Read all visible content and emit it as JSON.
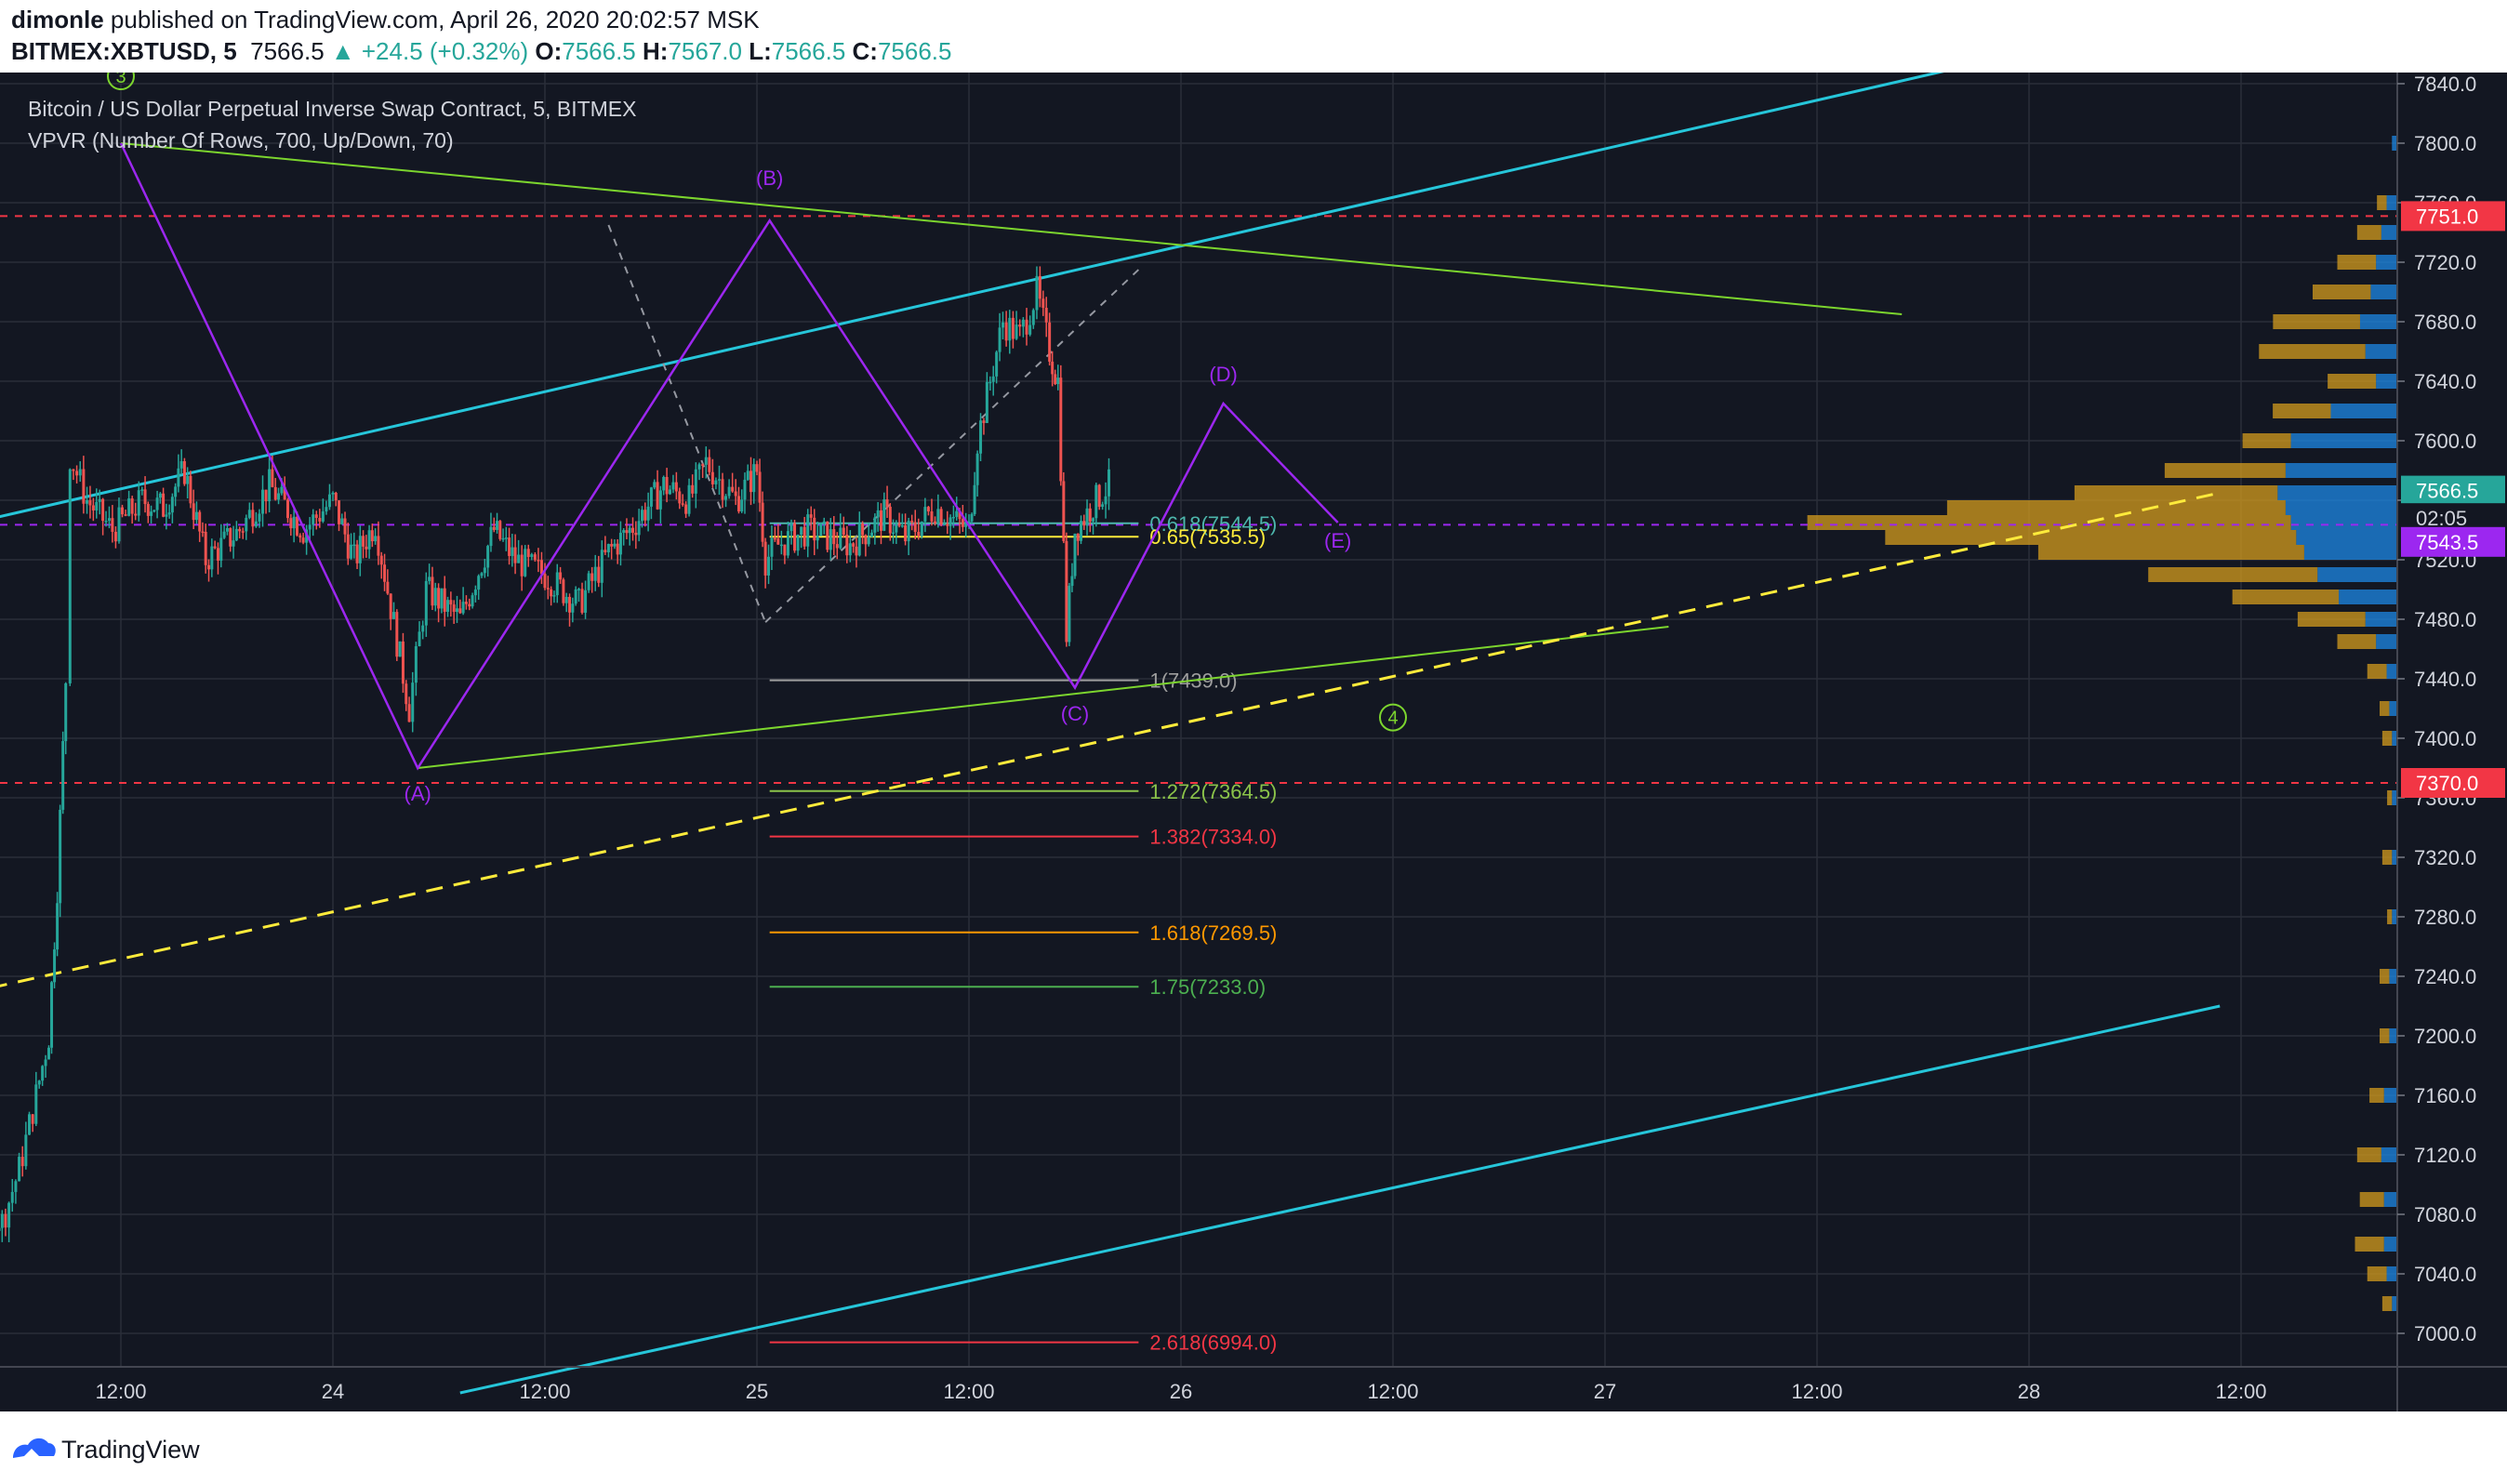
{
  "header": {
    "author": "dimonle",
    "published_text": "published on TradingView.com, April 26, 2020 20:02:57 MSK",
    "symbol": "BITMEX:XBTUSD, 5",
    "last": "7566.5",
    "change": "+24.5 (+0.32%)",
    "o_label": "O:",
    "o": "7566.5",
    "h_label": "H:",
    "h": "7567.0",
    "l_label": "L:",
    "l": "7566.5",
    "c_label": "C:",
    "c": "7566.5"
  },
  "legend": {
    "title": "Bitcoin / US Dollar Perpetual Inverse Swap Contract, 5, BITMEX",
    "indicator": "VPVR (Number Of Rows, 700, Up/Down, 70)"
  },
  "footer": {
    "brand": "TradingView",
    "logo_icon": "tradingview-logo-icon"
  },
  "colors": {
    "bg": "#131722",
    "grid": "#2a2e39",
    "up": "#26a69a",
    "down": "#ef5350",
    "wave": "#9c27f0",
    "cyan": "#26c6da",
    "green": "#4caf50",
    "yellow": "#ffeb3b",
    "red_dash": "#f23645",
    "vp_up": "#1e88e5",
    "vp_down": "#c8941e"
  },
  "chart_data": {
    "type": "candlestick",
    "title": "Bitcoin / US Dollar Perpetual Inverse Swap Contract, 5, BITMEX",
    "x_ticks": [
      "12:00",
      "24",
      "12:00",
      "25",
      "12:00",
      "26",
      "12:00",
      "27",
      "12:00",
      "28",
      "12:00"
    ],
    "y_ticks": [
      7000,
      7040,
      7080,
      7120,
      7160,
      7200,
      7240,
      7280,
      7320,
      7360,
      7400,
      7440,
      7480,
      7520,
      7560,
      7600,
      7640,
      7680,
      7720,
      7760,
      7800,
      7840
    ],
    "ylim": [
      6980,
      7850
    ],
    "xlim": [
      -0.5,
      4.95
    ],
    "price_path": [
      [
        -0.5,
        7140
      ],
      [
        -0.45,
        7120
      ],
      [
        -0.42,
        7040
      ],
      [
        -0.38,
        7060
      ],
      [
        -0.33,
        7090
      ],
      [
        -0.28,
        7075
      ],
      [
        -0.24,
        7110
      ],
      [
        -0.2,
        7160
      ],
      [
        -0.17,
        7200
      ],
      [
        -0.15,
        7300
      ],
      [
        -0.13,
        7440
      ],
      [
        -0.12,
        7590
      ],
      [
        -0.08,
        7560
      ],
      [
        -0.02,
        7540
      ],
      [
        0.05,
        7560
      ],
      [
        0.1,
        7555
      ],
      [
        0.15,
        7580
      ],
      [
        0.2,
        7520
      ],
      [
        0.28,
        7540
      ],
      [
        0.35,
        7570
      ],
      [
        0.43,
        7540
      ],
      [
        0.5,
        7560
      ],
      [
        0.55,
        7520
      ],
      [
        0.6,
        7545
      ],
      [
        0.68,
        7420
      ],
      [
        0.72,
        7500
      ],
      [
        0.8,
        7480
      ],
      [
        0.88,
        7540
      ],
      [
        0.93,
        7520
      ],
      [
        1.0,
        7510
      ],
      [
        1.08,
        7490
      ],
      [
        1.15,
        7525
      ],
      [
        1.2,
        7540
      ],
      [
        1.28,
        7570
      ],
      [
        1.34,
        7560
      ],
      [
        1.38,
        7585
      ],
      [
        1.45,
        7560
      ],
      [
        1.5,
        7580
      ],
      [
        1.52,
        7520
      ],
      [
        1.55,
        7530
      ],
      [
        1.62,
        7540
      ],
      [
        1.72,
        7530
      ],
      [
        1.8,
        7550
      ],
      [
        1.85,
        7535
      ],
      [
        1.92,
        7555
      ],
      [
        2.0,
        7540
      ],
      [
        2.02,
        7600
      ],
      [
        2.08,
        7680
      ],
      [
        2.12,
        7670
      ],
      [
        2.16,
        7700
      ],
      [
        2.19,
        7660
      ],
      [
        2.21,
        7640
      ],
      [
        2.23,
        7470
      ],
      [
        2.25,
        7540
      ],
      [
        2.3,
        7560
      ],
      [
        2.33,
        7570
      ]
    ],
    "wave_projection": [
      {
        "label": "(A)",
        "x": 0.7,
        "y": 7380
      },
      {
        "label": "(B)",
        "x": 1.53,
        "y": 7748
      },
      {
        "label": "(C)",
        "x": 2.25,
        "y": 7434
      },
      {
        "label": "(D)",
        "x": 2.6,
        "y": 7625
      },
      {
        "label": "(E)",
        "x": 2.87,
        "y": 7545
      }
    ],
    "wave_start": [
      0.0,
      7800
    ],
    "wave_labels": [
      {
        "text": "(A)",
        "x": 0.7,
        "y": 7358
      },
      {
        "text": "(B)",
        "x": 1.53,
        "y": 7772
      },
      {
        "text": "(C)",
        "x": 2.25,
        "y": 7412
      },
      {
        "text": "(D)",
        "x": 2.6,
        "y": 7640
      },
      {
        "text": "(E)",
        "x": 2.87,
        "y": 7528
      }
    ],
    "circled_labels": [
      {
        "text": "3",
        "x": 0.0,
        "y": 7845
      },
      {
        "text": "4",
        "x": 3.0,
        "y": 7414
      }
    ],
    "fib_levels": [
      {
        "label": "0.618(7544.5)",
        "price": 7544.5,
        "color": "#4db6ac"
      },
      {
        "label": "0.65(7535.5)",
        "price": 7535.5,
        "color": "#ffeb3b"
      },
      {
        "label": "1(7439.0)",
        "price": 7439.0,
        "color": "#9e9e9e"
      },
      {
        "label": "1.272(7364.5)",
        "price": 7364.5,
        "color": "#8bc34a"
      },
      {
        "label": "1.382(7334.0)",
        "price": 7334.0,
        "color": "#f23645"
      },
      {
        "label": "1.618(7269.5)",
        "price": 7269.5,
        "color": "#ff9800"
      },
      {
        "label": "1.75(7233.0)",
        "price": 7233.0,
        "color": "#4caf50"
      },
      {
        "label": "2.618(6994.0)",
        "price": 6994.0,
        "color": "#f23645"
      }
    ],
    "fib_x_range": [
      1.53,
      2.4
    ],
    "trendlines": [
      {
        "name": "cyan-upper",
        "color": "#26c6da",
        "width": 3,
        "dash": "",
        "points": [
          [
            -0.5,
            7535
          ],
          [
            4.4,
            7855
          ]
        ]
      },
      {
        "name": "cyan-lower",
        "color": "#26c6da",
        "width": 3,
        "dash": "",
        "points": [
          [
            0.8,
            6960
          ],
          [
            4.95,
            7220
          ]
        ]
      },
      {
        "name": "green-upper",
        "color": "#7cd52e",
        "width": 2,
        "dash": "",
        "points": [
          [
            0.0,
            7800
          ],
          [
            4.2,
            7685
          ]
        ]
      },
      {
        "name": "green-lower",
        "color": "#7cd52e",
        "width": 2,
        "dash": "",
        "points": [
          [
            0.7,
            7380
          ],
          [
            3.65,
            7475
          ]
        ]
      },
      {
        "name": "yellow-dashed",
        "color": "#ffeb3b",
        "width": 3,
        "dash": "18,12",
        "points": [
          [
            -0.5,
            7220
          ],
          [
            4.95,
            7565
          ]
        ]
      },
      {
        "name": "gray-dashed-a",
        "color": "#9598a1",
        "width": 2,
        "dash": "8,8",
        "points": [
          [
            1.15,
            7745
          ],
          [
            1.52,
            7478
          ]
        ]
      },
      {
        "name": "gray-dashed-b",
        "color": "#9598a1",
        "width": 2,
        "dash": "8,8",
        "points": [
          [
            1.52,
            7478
          ],
          [
            2.4,
            7715
          ]
        ]
      }
    ],
    "horizontal_lines": [
      {
        "name": "red-dash-top",
        "price": 7751,
        "color": "#f23645",
        "dash": "8,8"
      },
      {
        "name": "red-dash-bottom",
        "price": 7370,
        "color": "#f23645",
        "dash": "8,8"
      },
      {
        "name": "purple-dash-mid",
        "price": 7543.5,
        "color": "#9c27f0",
        "dash": "8,8"
      }
    ],
    "price_labels": [
      {
        "text": "7751.0",
        "price": 7751,
        "bg": "#f23645",
        "fg": "#ffffff"
      },
      {
        "text": "7566.5",
        "price": 7566.5,
        "bg": "#26a69a",
        "fg": "#ffffff"
      },
      {
        "text": "02:05",
        "price": 7548,
        "bg": "#131722",
        "fg": "#d1d4dc"
      },
      {
        "text": "7543.5",
        "price": 7532,
        "bg": "#9c27f0",
        "fg": "#ffffff"
      },
      {
        "text": "7370.0",
        "price": 7370,
        "bg": "#f23645",
        "fg": "#ffffff"
      }
    ],
    "volume_profile": {
      "bins": [
        [
          7800,
          0.02,
          0.0
        ],
        [
          7760,
          0.04,
          0.02
        ],
        [
          7740,
          0.06,
          0.05
        ],
        [
          7720,
          0.08,
          0.08
        ],
        [
          7700,
          0.1,
          0.12
        ],
        [
          7680,
          0.14,
          0.18
        ],
        [
          7660,
          0.12,
          0.22
        ],
        [
          7640,
          0.08,
          0.1
        ],
        [
          7620,
          0.25,
          0.12
        ],
        [
          7600,
          0.4,
          0.1
        ],
        [
          7580,
          0.42,
          0.25
        ],
        [
          7565,
          0.45,
          0.42
        ],
        [
          7555,
          0.42,
          0.7
        ],
        [
          7545,
          0.4,
          1.0
        ],
        [
          7535,
          0.38,
          0.85
        ],
        [
          7525,
          0.35,
          0.55
        ],
        [
          7510,
          0.3,
          0.35
        ],
        [
          7495,
          0.22,
          0.22
        ],
        [
          7480,
          0.12,
          0.14
        ],
        [
          7465,
          0.08,
          0.08
        ],
        [
          7445,
          0.04,
          0.04
        ],
        [
          7420,
          0.03,
          0.02
        ],
        [
          7400,
          0.02,
          0.02
        ],
        [
          7360,
          0.02,
          0.01
        ],
        [
          7320,
          0.02,
          0.02
        ],
        [
          7280,
          0.02,
          0.01
        ],
        [
          7240,
          0.03,
          0.02
        ],
        [
          7200,
          0.03,
          0.02
        ],
        [
          7160,
          0.05,
          0.03
        ],
        [
          7120,
          0.06,
          0.05
        ],
        [
          7090,
          0.05,
          0.05
        ],
        [
          7060,
          0.05,
          0.06
        ],
        [
          7040,
          0.04,
          0.04
        ],
        [
          7020,
          0.02,
          0.02
        ]
      ]
    }
  }
}
